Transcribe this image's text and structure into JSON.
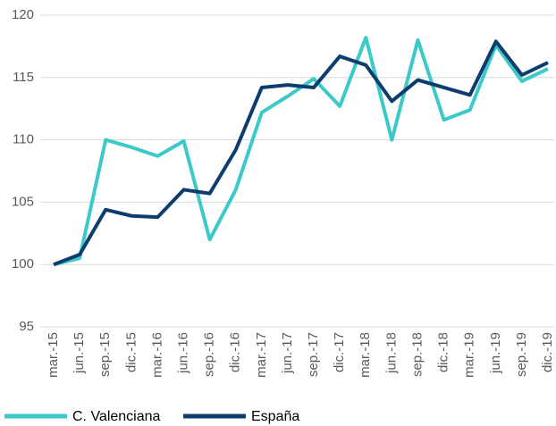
{
  "chart_data": {
    "type": "line",
    "categories": [
      "mar.-15",
      "jun.-15",
      "sep.-15",
      "dic.-15",
      "mar.-16",
      "jun.-16",
      "sep.-16",
      "dic.-16",
      "mar.-17",
      "jun.-17",
      "sep.-17",
      "dic.-17",
      "mar.-18",
      "jun.-18",
      "sep.-18",
      "dic.-18",
      "mar.-19",
      "jun.-19",
      "sep.-19",
      "dic.-19"
    ],
    "series": [
      {
        "name": "C. Valenciana",
        "color": "#3cc9c9",
        "values": [
          100,
          100.5,
          110,
          109.4,
          108.7,
          109.9,
          102,
          106,
          112.2,
          113.5,
          114.9,
          112.7,
          118.2,
          110,
          118,
          111.6,
          112.4,
          117.6,
          114.7,
          115.7
        ]
      },
      {
        "name": "España",
        "color": "#0c3d6e",
        "values": [
          100,
          100.8,
          104.4,
          103.9,
          103.8,
          106,
          105.7,
          109.2,
          114.2,
          114.4,
          114.2,
          116.7,
          116,
          113.1,
          114.8,
          114.2,
          113.6,
          117.9,
          115.2,
          116.2
        ]
      }
    ],
    "ylim": [
      95,
      120
    ],
    "yticks": [
      95,
      100,
      105,
      110,
      115,
      120
    ],
    "grid": true,
    "legend": "bottom"
  }
}
